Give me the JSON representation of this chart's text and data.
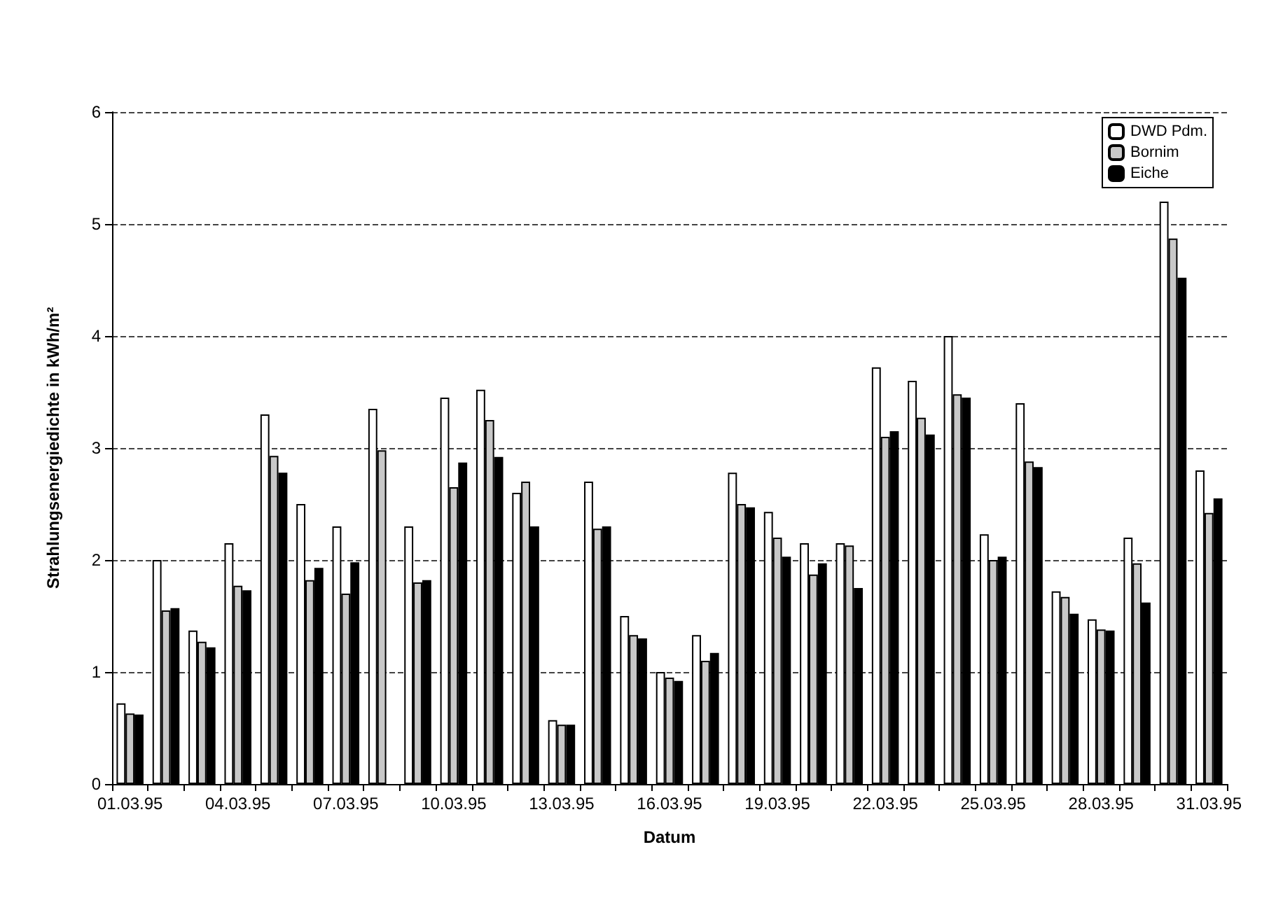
{
  "chart_data": {
    "type": "bar",
    "xlabel": "Datum",
    "ylabel": "Strahlungsenergiedichte in kWh/m²",
    "categories": [
      "01.03.95",
      null,
      null,
      "04.03.95",
      null,
      null,
      "07.03.95",
      null,
      null,
      "10.03.95",
      null,
      null,
      "13.03.95",
      null,
      null,
      "16.03.95",
      null,
      null,
      "19.03.95",
      null,
      null,
      "22.03.95",
      null,
      null,
      "25.03.95",
      null,
      null,
      "28.03.95",
      null,
      null,
      "31.03.95"
    ],
    "series": [
      {
        "name": "DWD Pdm.",
        "color": "#ffffff",
        "values": [
          0.72,
          2.0,
          1.37,
          2.15,
          3.3,
          2.5,
          2.3,
          3.35,
          2.3,
          3.45,
          3.52,
          2.6,
          0.57,
          2.7,
          1.5,
          1.0,
          1.33,
          2.78,
          2.43,
          2.15,
          2.15,
          3.72,
          3.6,
          4.0,
          2.23,
          3.4,
          1.72,
          1.47,
          2.2,
          5.2,
          2.8
        ]
      },
      {
        "name": "Bornim",
        "color": "#c8c8c8",
        "values": [
          0.63,
          1.55,
          1.27,
          1.77,
          2.93,
          1.82,
          1.7,
          2.98,
          1.8,
          2.65,
          3.25,
          2.7,
          0.53,
          2.28,
          1.33,
          0.95,
          1.1,
          2.5,
          2.2,
          1.87,
          2.13,
          3.1,
          3.27,
          3.48,
          2.0,
          2.88,
          1.67,
          1.38,
          1.97,
          4.87,
          2.42
        ]
      },
      {
        "name": "Eiche",
        "color": "#000000",
        "values": [
          0.62,
          1.57,
          1.22,
          1.73,
          2.78,
          1.93,
          1.98,
          null,
          1.82,
          2.87,
          2.92,
          2.3,
          0.53,
          2.3,
          1.3,
          0.92,
          1.17,
          2.47,
          2.03,
          1.97,
          1.75,
          3.15,
          3.12,
          3.45,
          2.03,
          2.83,
          1.52,
          1.37,
          1.62,
          4.52,
          2.55
        ]
      }
    ],
    "ylim": [
      0,
      6
    ],
    "yticks": [
      0,
      1,
      2,
      3,
      4,
      5,
      6
    ],
    "grid": "y",
    "legend": "top right"
  }
}
